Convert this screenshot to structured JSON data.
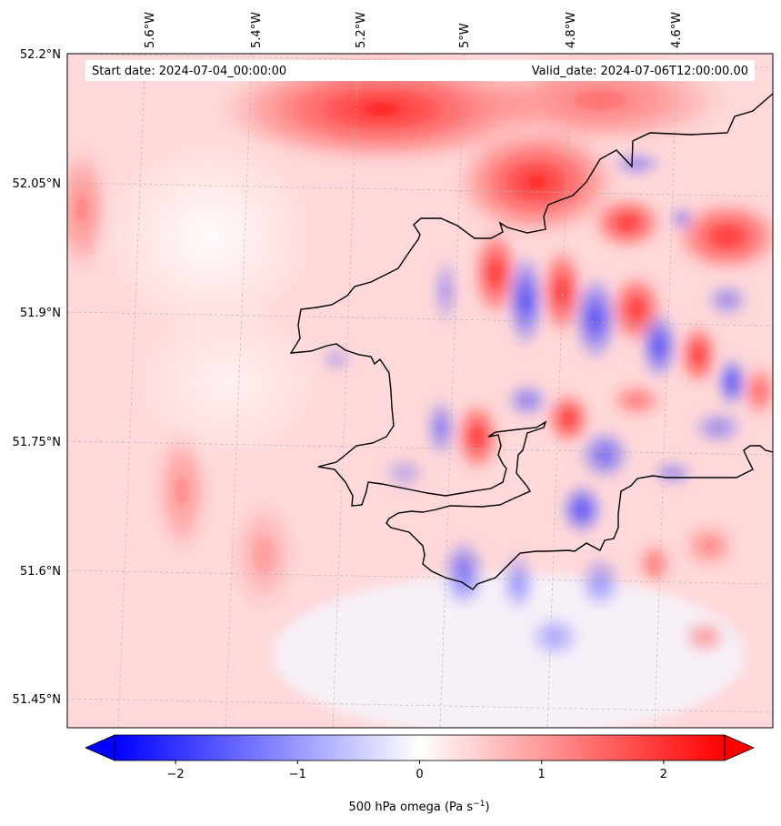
{
  "header": {
    "start_label": "Start date: 2024-07-04_00:00:00",
    "valid_label": "Valid_date: 2024-07-06T12:00:00.00"
  },
  "map": {
    "lon_labels": [
      "5.6°W",
      "5.4°W",
      "5.2°W",
      "5°W",
      "4.8°W",
      "4.6°W"
    ],
    "lat_labels": [
      "52.2°N",
      "52.05°N",
      "51.9°N",
      "51.75°N",
      "51.6°N",
      "51.45°N"
    ],
    "field": "500 hPa omega",
    "colormap": "bwr",
    "gridlines": true
  },
  "colorbar": {
    "ticks": [
      "−2",
      "−1",
      "0",
      "1",
      "2"
    ],
    "min": -2.5,
    "max": 2.5,
    "extend": "both",
    "label_main": "500 hPa omega (Pa s",
    "label_exp": "−1",
    "label_end": ")"
  },
  "colors": {
    "negative": "#0000ff",
    "zero": "#ffffff",
    "positive": "#ff0000",
    "coastline": "#000000"
  }
}
